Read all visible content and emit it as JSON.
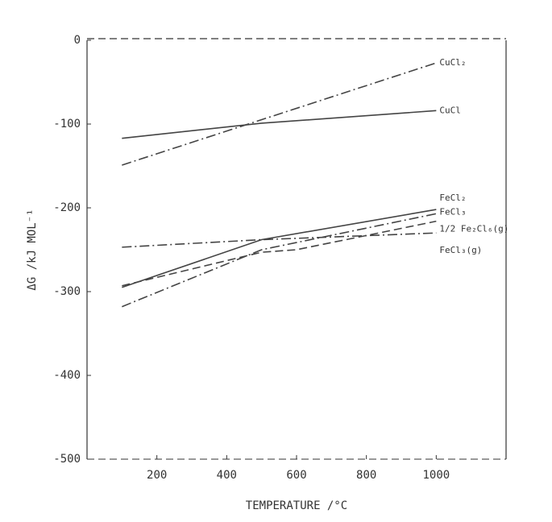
{
  "chart_data": {
    "type": "line",
    "xlabel": "TEMPERATURE /°C",
    "ylabel": "ΔG /kJ MOL⁻¹",
    "xlim": [
      0,
      1200
    ],
    "xticks": [
      200,
      400,
      600,
      800,
      1000
    ],
    "ylim": [
      -500,
      0
    ],
    "yticks": [
      -500,
      -400,
      -300,
      -200,
      -100,
      0
    ],
    "series": [
      {
        "name": "CuCl₂",
        "color": "#444",
        "style": "dash-dot",
        "x": [
          100,
          1000
        ],
        "values": [
          -149,
          -27
        ]
      },
      {
        "name": "CuCl",
        "color": "#444",
        "style": "solid",
        "x": [
          100,
          500,
          1000
        ],
        "values": [
          -117,
          -99,
          -84
        ]
      },
      {
        "name": "FeCl₂",
        "color": "#444",
        "style": "solid",
        "x": [
          100,
          500,
          1000
        ],
        "values": [
          -295,
          -238,
          -202
        ]
      },
      {
        "name": "FeCl₃",
        "color": "#444",
        "style": "dash-dot",
        "x": [
          100,
          500,
          1000
        ],
        "values": [
          -318,
          -250,
          -207
        ]
      },
      {
        "name": "1/2 Fe₂Cl₆(g)",
        "color": "#444",
        "style": "dashed",
        "x": [
          100,
          500,
          600,
          1000
        ],
        "values": [
          -293,
          -253,
          -250,
          -216
        ]
      },
      {
        "name": "FeCl₃(g)",
        "color": "#444",
        "style": "dash-dot",
        "x": [
          100,
          500,
          1000
        ],
        "values": [
          -247,
          -238,
          -230
        ]
      }
    ]
  }
}
